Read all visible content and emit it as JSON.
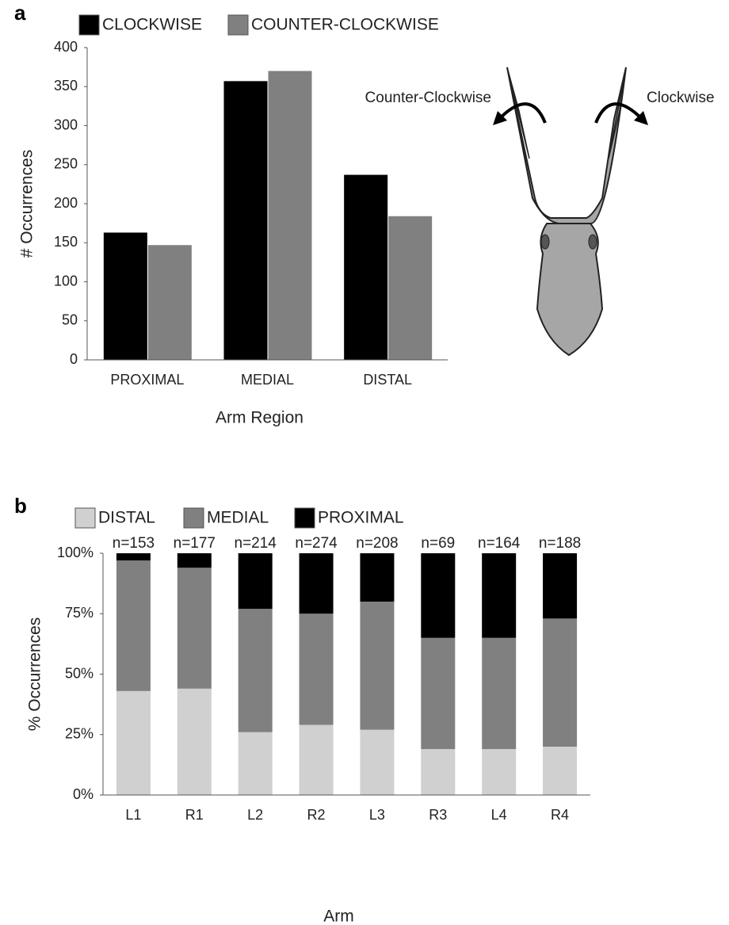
{
  "chart_data": [
    {
      "type": "bar",
      "panel_label": "a",
      "categories": [
        "PROXIMAL",
        "MEDIAL",
        "DISTAL"
      ],
      "series": [
        {
          "name": "CLOCKWISE",
          "color": "#000000",
          "values": [
            163,
            357,
            237
          ]
        },
        {
          "name": "COUNTER-CLOCKWISE",
          "color": "#808080",
          "values": [
            147,
            370,
            184
          ]
        }
      ],
      "xlabel": "Arm Region",
      "ylabel": "# Occurrences",
      "ylim": [
        0,
        400
      ],
      "yticks": [
        0,
        50,
        100,
        150,
        200,
        250,
        300,
        350,
        400
      ],
      "annotations": [
        "Counter-Clockwise",
        "Clockwise"
      ]
    },
    {
      "type": "stacked_bar",
      "panel_label": "b",
      "categories": [
        "L1",
        "R1",
        "L2",
        "R2",
        "L3",
        "R3",
        "L4",
        "R4"
      ],
      "series": [
        {
          "name": "DISTAL",
          "color": "#d0d0d0",
          "values": [
            43,
            44,
            26,
            29,
            27,
            19,
            19,
            20
          ]
        },
        {
          "name": "MEDIAL",
          "color": "#808080",
          "values": [
            54,
            50,
            51,
            46,
            53,
            46,
            46,
            53
          ]
        },
        {
          "name": "PROXIMAL",
          "color": "#000000",
          "values": [
            3,
            6,
            23,
            25,
            20,
            35,
            35,
            27
          ]
        }
      ],
      "bar_labels": [
        "n=153",
        "n=177",
        "n=214",
        "n=274",
        "n=208",
        "n=69",
        "n=164",
        "n=188"
      ],
      "xlabel": "Arm",
      "ylabel": "% Occurrences",
      "ylim": [
        0,
        100
      ],
      "yticks": [
        {
          "value": 0,
          "label": "0%"
        },
        {
          "value": 25,
          "label": "25%"
        },
        {
          "value": 50,
          "label": "50%"
        },
        {
          "value": 75,
          "label": "75%"
        },
        {
          "value": 100,
          "label": "100%"
        }
      ]
    }
  ]
}
